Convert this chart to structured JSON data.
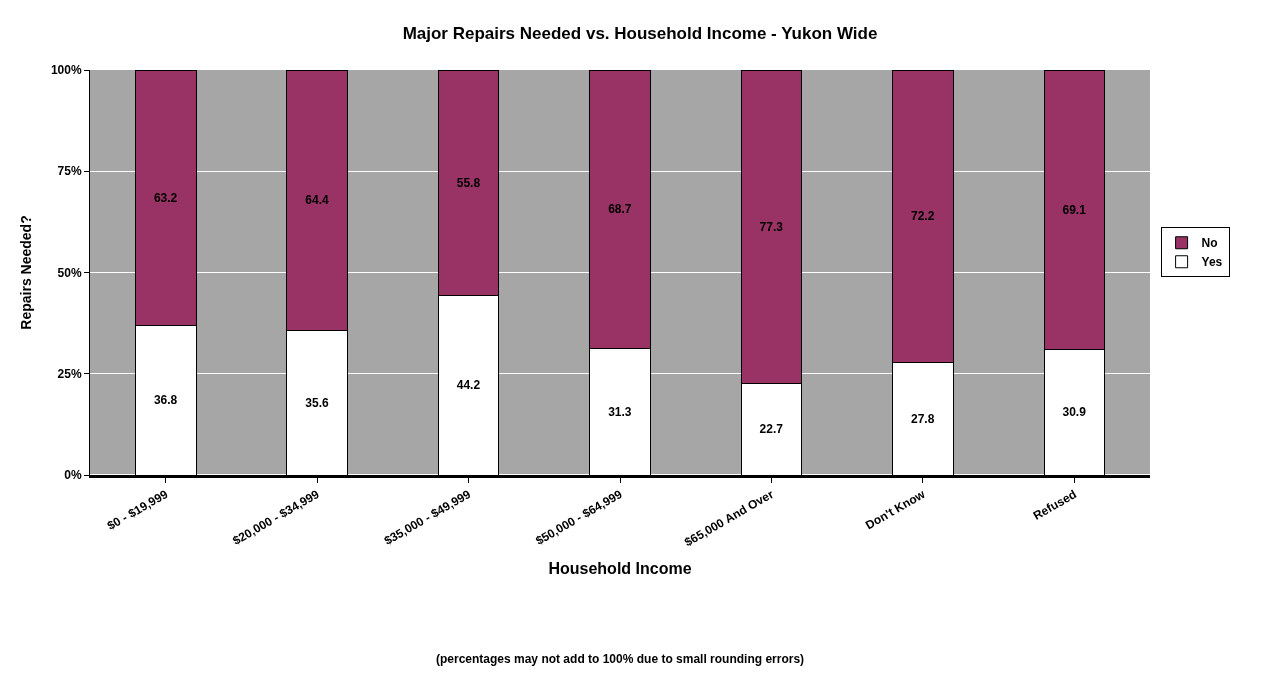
{
  "chart_data": {
    "type": "bar",
    "title": "Major Repairs Needed vs. Household Income - Yukon Wide",
    "xlabel": "Household Income",
    "ylabel": "Repairs Needed?",
    "annotations": [
      "(percentages may not add to 100% due to small rounding errors)"
    ],
    "categories": [
      "$0 - $19,999",
      "$20,000 - $34,999",
      "$35,000 - $49,999",
      "$50,000 - $64,999",
      "$65,000 And Over",
      "Don't Know",
      "Refused"
    ],
    "series": [
      {
        "name": "Yes",
        "color": "#ffffff",
        "values": [
          36.8,
          35.6,
          44.2,
          31.3,
          22.7,
          27.8,
          30.9
        ]
      },
      {
        "name": "No",
        "color": "#993366",
        "values": [
          63.2,
          64.4,
          55.8,
          68.7,
          77.3,
          72.2,
          69.1
        ]
      }
    ],
    "stacked": true,
    "data_labels": true,
    "ylim": [
      0,
      100
    ],
    "yticks": [
      {
        "value": 0,
        "label": "0%"
      },
      {
        "value": 25,
        "label": "25%"
      },
      {
        "value": 50,
        "label": "50%"
      },
      {
        "value": 75,
        "label": "75%"
      },
      {
        "value": 100,
        "label": "100%"
      }
    ],
    "grid": "y",
    "legend": "right"
  }
}
